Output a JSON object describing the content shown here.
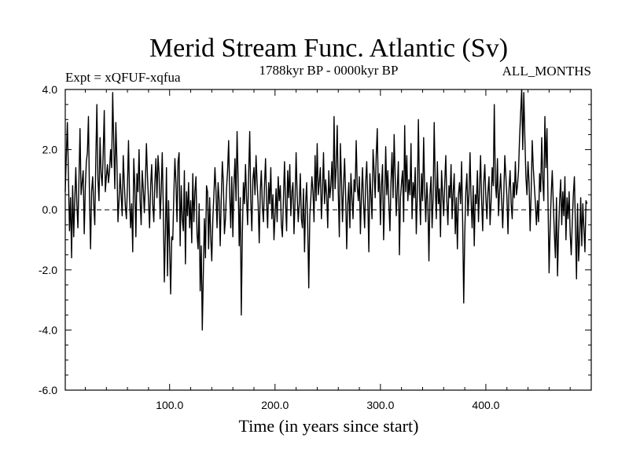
{
  "chart_data": {
    "type": "line",
    "title": "Merid Stream Func. Atlantic (Sv)",
    "subtitle_left": "Expt = xQFUF-xqfua",
    "subtitle_center": "1788kyr BP - 0000kyr BP",
    "subtitle_right": "ALL_MONTHS",
    "xlabel": "Time (in years since start)",
    "ylabel": "",
    "xlim": [
      1,
      500
    ],
    "ylim": [
      -6.0,
      4.0
    ],
    "x_ticks": [
      100,
      200,
      300,
      400
    ],
    "x_tick_labels": [
      "100.0",
      "200.0",
      "300.0",
      "400.0"
    ],
    "y_ticks": [
      4,
      2,
      0,
      -2,
      -4,
      -6
    ],
    "y_tick_labels": [
      "4.0",
      "2.0",
      "0.0",
      "-2.0",
      "-4.0",
      "-6.0"
    ],
    "zero_line": "dashed",
    "grid": false,
    "legend": "none",
    "colors": {
      "line": "#000000",
      "axis": "#000000",
      "background": "#ffffff"
    },
    "series": [
      {
        "x_start": 1,
        "x_step": 1,
        "values": [
          0.6,
          1.8,
          2.9,
          1.2,
          -0.7,
          0.4,
          -1.6,
          0.8,
          -0.9,
          0.3,
          1.4,
          0.2,
          -0.6,
          1.0,
          2.7,
          0.5,
          0.9,
          1.3,
          -0.8,
          0.7,
          1.6,
          1.9,
          3.1,
          0.4,
          -1.3,
          0.6,
          1.1,
          0.2,
          -0.5,
          1.7,
          3.5,
          1.0,
          0.3,
          2.4,
          1.2,
          0.8,
          1.9,
          3.3,
          0.6,
          1.1,
          1.5,
          0.9,
          1.3,
          2.0,
          1.4,
          3.9,
          2.2,
          0.7,
          2.9,
          1.6,
          -0.4,
          0.3,
          1.2,
          0.5,
          -0.2,
          1.8,
          0.9,
          0.1,
          -0.3,
          0.8,
          2.3,
          0.4,
          -0.6,
          0.2,
          -1.4,
          1.7,
          0.8,
          -0.9,
          1.2,
          0.6,
          2.0,
          0.3,
          -0.5,
          1.3,
          0.7,
          -0.1,
          0.9,
          2.2,
          1.1,
          0.3,
          -0.6,
          0.8,
          1.5,
          0.2,
          -0.4,
          0.9,
          1.7,
          0.4,
          1.8,
          1.2,
          -0.3,
          0.6,
          1.9,
          0.1,
          -2.4,
          -0.8,
          1.4,
          -2.2,
          0.3,
          -1.3,
          -2.8,
          -0.9,
          -1.0,
          0.5,
          1.7,
          0.9,
          -0.4,
          1.6,
          1.9,
          -1.2,
          0.8,
          -0.3,
          -0.7,
          1.3,
          -1.8,
          0.6,
          -0.2,
          0.9,
          -0.6,
          0.3,
          -1.1,
          1.2,
          -0.4,
          0.6,
          1.1,
          -0.8,
          -1.3,
          0.2,
          -2.7,
          -1.2,
          -4.0,
          -2.1,
          -0.3,
          -1.6,
          0.8,
          0.6,
          -1.3,
          0.4,
          -0.9,
          -1.7,
          -0.3,
          0.5,
          1.4,
          0.6,
          -0.6,
          0.9,
          0.3,
          -1.2,
          0.4,
          1.6,
          0.9,
          -0.8,
          -0.3,
          0.7,
          1.3,
          2.3,
          0.5,
          -0.6,
          1.1,
          -0.9,
          0.8,
          1.7,
          0.3,
          2.6,
          1.0,
          -1.2,
          0.4,
          -3.5,
          -0.8,
          0.9,
          0.2,
          1.5,
          0.4,
          -0.5,
          1.2,
          2.6,
          0.3,
          -0.7,
          1.0,
          1.4,
          0.5,
          1.8,
          0.9,
          0.2,
          -1.1,
          0.6,
          1.3,
          0.1,
          -0.4,
          0.8,
          1.7,
          0.3,
          -0.6,
          0.9,
          0.2,
          1.4,
          -0.3,
          0.5,
          -1.0,
          -0.2,
          0.7,
          -0.4,
          1.1,
          0.3,
          0.8,
          -0.5,
          -0.9,
          0.4,
          1.6,
          0.2,
          -0.7,
          1.3,
          0.4,
          1.5,
          -0.2,
          0.6,
          0.9,
          -0.8,
          0.3,
          1.9,
          0.5,
          -0.4,
          0.2,
          1.2,
          -0.3,
          -0.6,
          0.7,
          -1.4,
          0.2,
          0.9,
          -0.5,
          -2.6,
          -0.2,
          0.4,
          1.1,
          0.6,
          -0.4,
          1.8,
          0.3,
          2.2,
          0.5,
          0.9,
          1.4,
          -0.3,
          0.6,
          1.9,
          0.2,
          1.0,
          0.5,
          -0.6,
          1.3,
          0.4,
          0.8,
          1.6,
          0.3,
          3.1,
          0.7,
          1.4,
          2.8,
          0.6,
          -0.9,
          2.2,
          1.0,
          -0.4,
          0.8,
          1.7,
          0.5,
          -1.3,
          0.2,
          0.9,
          -0.6,
          1.2,
          0.4,
          -0.3,
          1.0,
          0.6,
          2.3,
          0.8,
          0.3,
          1.1,
          -0.8,
          0.5,
          1.4,
          0.2,
          -0.6,
          0.9,
          1.6,
          0.3,
          -1.4,
          1.2,
          0.5,
          -0.3,
          2.0,
          1.3,
          0.4,
          1.8,
          2.7,
          0.6,
          1.2,
          -0.5,
          0.8,
          1.5,
          -1.0,
          0.3,
          2.1,
          0.5,
          1.3,
          0.2,
          -0.7,
          0.9,
          1.9,
          0.4,
          2.5,
          1.1,
          -0.2,
          0.7,
          1.6,
          -1.5,
          0.4,
          0.9,
          1.3,
          -0.4,
          2.8,
          0.6,
          1.8,
          0.3,
          1.0,
          0.5,
          2.2,
          -0.3,
          0.9,
          0.4,
          1.4,
          -0.8,
          0.5,
          3.0,
          0.7,
          -0.5,
          1.2,
          0.3,
          2.4,
          0.6,
          -0.4,
          0.9,
          0.2,
          -1.7,
          0.5,
          1.1,
          -0.6,
          0.4,
          2.9,
          0.8,
          -0.3,
          1.6,
          0.2,
          0.7,
          -0.9,
          1.3,
          0.5,
          -0.2,
          0.9,
          1.8,
          0.3,
          -0.5,
          0.8,
          0.4,
          1.5,
          -0.3,
          0.6,
          1.2,
          -0.8,
          0.4,
          -1.3,
          0.5,
          0.9,
          0.2,
          1.6,
          -0.4,
          -3.1,
          -0.8,
          0.6,
          1.2,
          -0.2,
          0.5,
          1.9,
          0.3,
          -0.6,
          0.8,
          -1.2,
          0.5,
          0.2,
          1.3,
          -0.4,
          0.7,
          1.8,
          0.3,
          -0.7,
          0.9,
          1.5,
          0.4,
          -0.3,
          0.6,
          1.1,
          -0.5,
          0.3,
          1.4,
          0.8,
          3.5,
          0.9,
          0.4,
          1.7,
          -0.2,
          0.6,
          1.2,
          0.3,
          -0.6,
          0.5,
          1.8,
          1.1,
          0.4,
          -0.8,
          0.7,
          1.3,
          0.2,
          -0.3,
          0.9,
          0.4,
          1.6,
          0.5,
          0.8,
          1.3,
          2.4,
          3.2,
          4.0,
          2.0,
          3.9,
          2.4,
          1.1,
          0.5,
          1.6,
          0.9,
          -0.7,
          0.6,
          2.3,
          1.4,
          0.8,
          0.2,
          -0.5,
          0.3,
          -0.4,
          1.2,
          0.6,
          2.4,
          1.0,
          0.3,
          3.1,
          1.4,
          2.7,
          0.2,
          -2.1,
          -0.6,
          0.5,
          1.3,
          0.2,
          -0.8,
          -1.6,
          0.4,
          -2.2,
          -0.7,
          0.3,
          1.0,
          -0.5,
          0.6,
          -0.2,
          1.1,
          -1.0,
          0.4,
          -0.3,
          0.6,
          -0.8,
          -1.5,
          -0.4,
          0.5,
          1.1,
          -0.6,
          -2.3,
          0.2,
          -1.7,
          -0.9,
          0.4,
          -1.2,
          0.2,
          -0.6,
          -1.4,
          0.3,
          0.2
        ]
      }
    ]
  }
}
